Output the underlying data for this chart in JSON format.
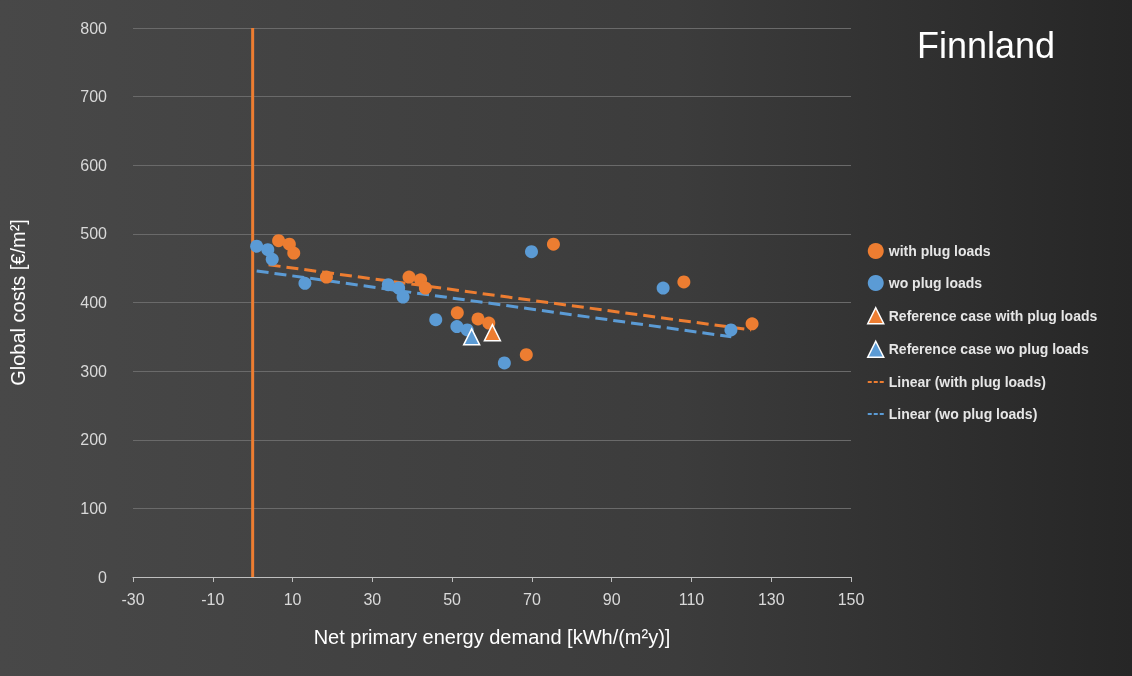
{
  "chart_data": {
    "type": "scatter",
    "title": "Finnland",
    "xlabel": "Net primary energy demand [kWh/(m²y)]",
    "ylabel": "Global costs [€/m²]",
    "xlim": [
      -30,
      150
    ],
    "xticks": [
      -30,
      -10,
      10,
      30,
      50,
      70,
      90,
      110,
      130,
      150
    ],
    "ylim": [
      0,
      800
    ],
    "yticks": [
      0,
      100,
      200,
      300,
      400,
      500,
      600,
      700,
      800
    ],
    "grid": "y",
    "legend": "right",
    "ref_lines": [
      {
        "axis": "x",
        "value": 0,
        "color": "#ed7d31"
      }
    ],
    "series": [
      {
        "name": "with plug loads",
        "marker": "circle",
        "color": "#ed7d31",
        "x": [
          6.5,
          9.2,
          10.3,
          18.5,
          39.2,
          42.1,
          43.3,
          51.3,
          56.5,
          59.2,
          68.6,
          75.4,
          108.1,
          125.2
        ],
        "values": [
          490,
          485,
          472,
          437,
          437,
          433,
          421,
          385,
          376,
          370,
          324,
          485,
          430,
          369
        ]
      },
      {
        "name": "wo plug loads",
        "marker": "circle",
        "color": "#5b9bd5",
        "x": [
          1.0,
          3.8,
          4.9,
          13.1,
          34.0,
          36.6,
          37.7,
          45.9,
          51.2,
          53.8,
          63.1,
          69.9,
          102.9,
          119.9
        ],
        "values": [
          482,
          477,
          463,
          428,
          426,
          421,
          408,
          375,
          365,
          360,
          312,
          474,
          421,
          360
        ]
      },
      {
        "name": "Reference case with plug loads",
        "marker": "triangle",
        "color": "#ed7d31",
        "x": [
          60.1
        ],
        "values": [
          356
        ]
      },
      {
        "name": "Reference case wo plug loads",
        "marker": "triangle",
        "color": "#5b9bd5",
        "x": [
          54.9
        ],
        "values": [
          350
        ]
      },
      {
        "name": "Linear (with plug loads)",
        "type": "line",
        "marker": "none",
        "line_style": "dashed",
        "color": "#ed7d31",
        "x": [
          4,
          125
        ],
        "values": [
          455,
          360
        ]
      },
      {
        "name": "Linear (wo plug loads)",
        "type": "line",
        "marker": "none",
        "line_style": "dashed",
        "color": "#5b9bd5",
        "x": [
          1,
          120
        ],
        "values": [
          446,
          350
        ]
      }
    ]
  }
}
